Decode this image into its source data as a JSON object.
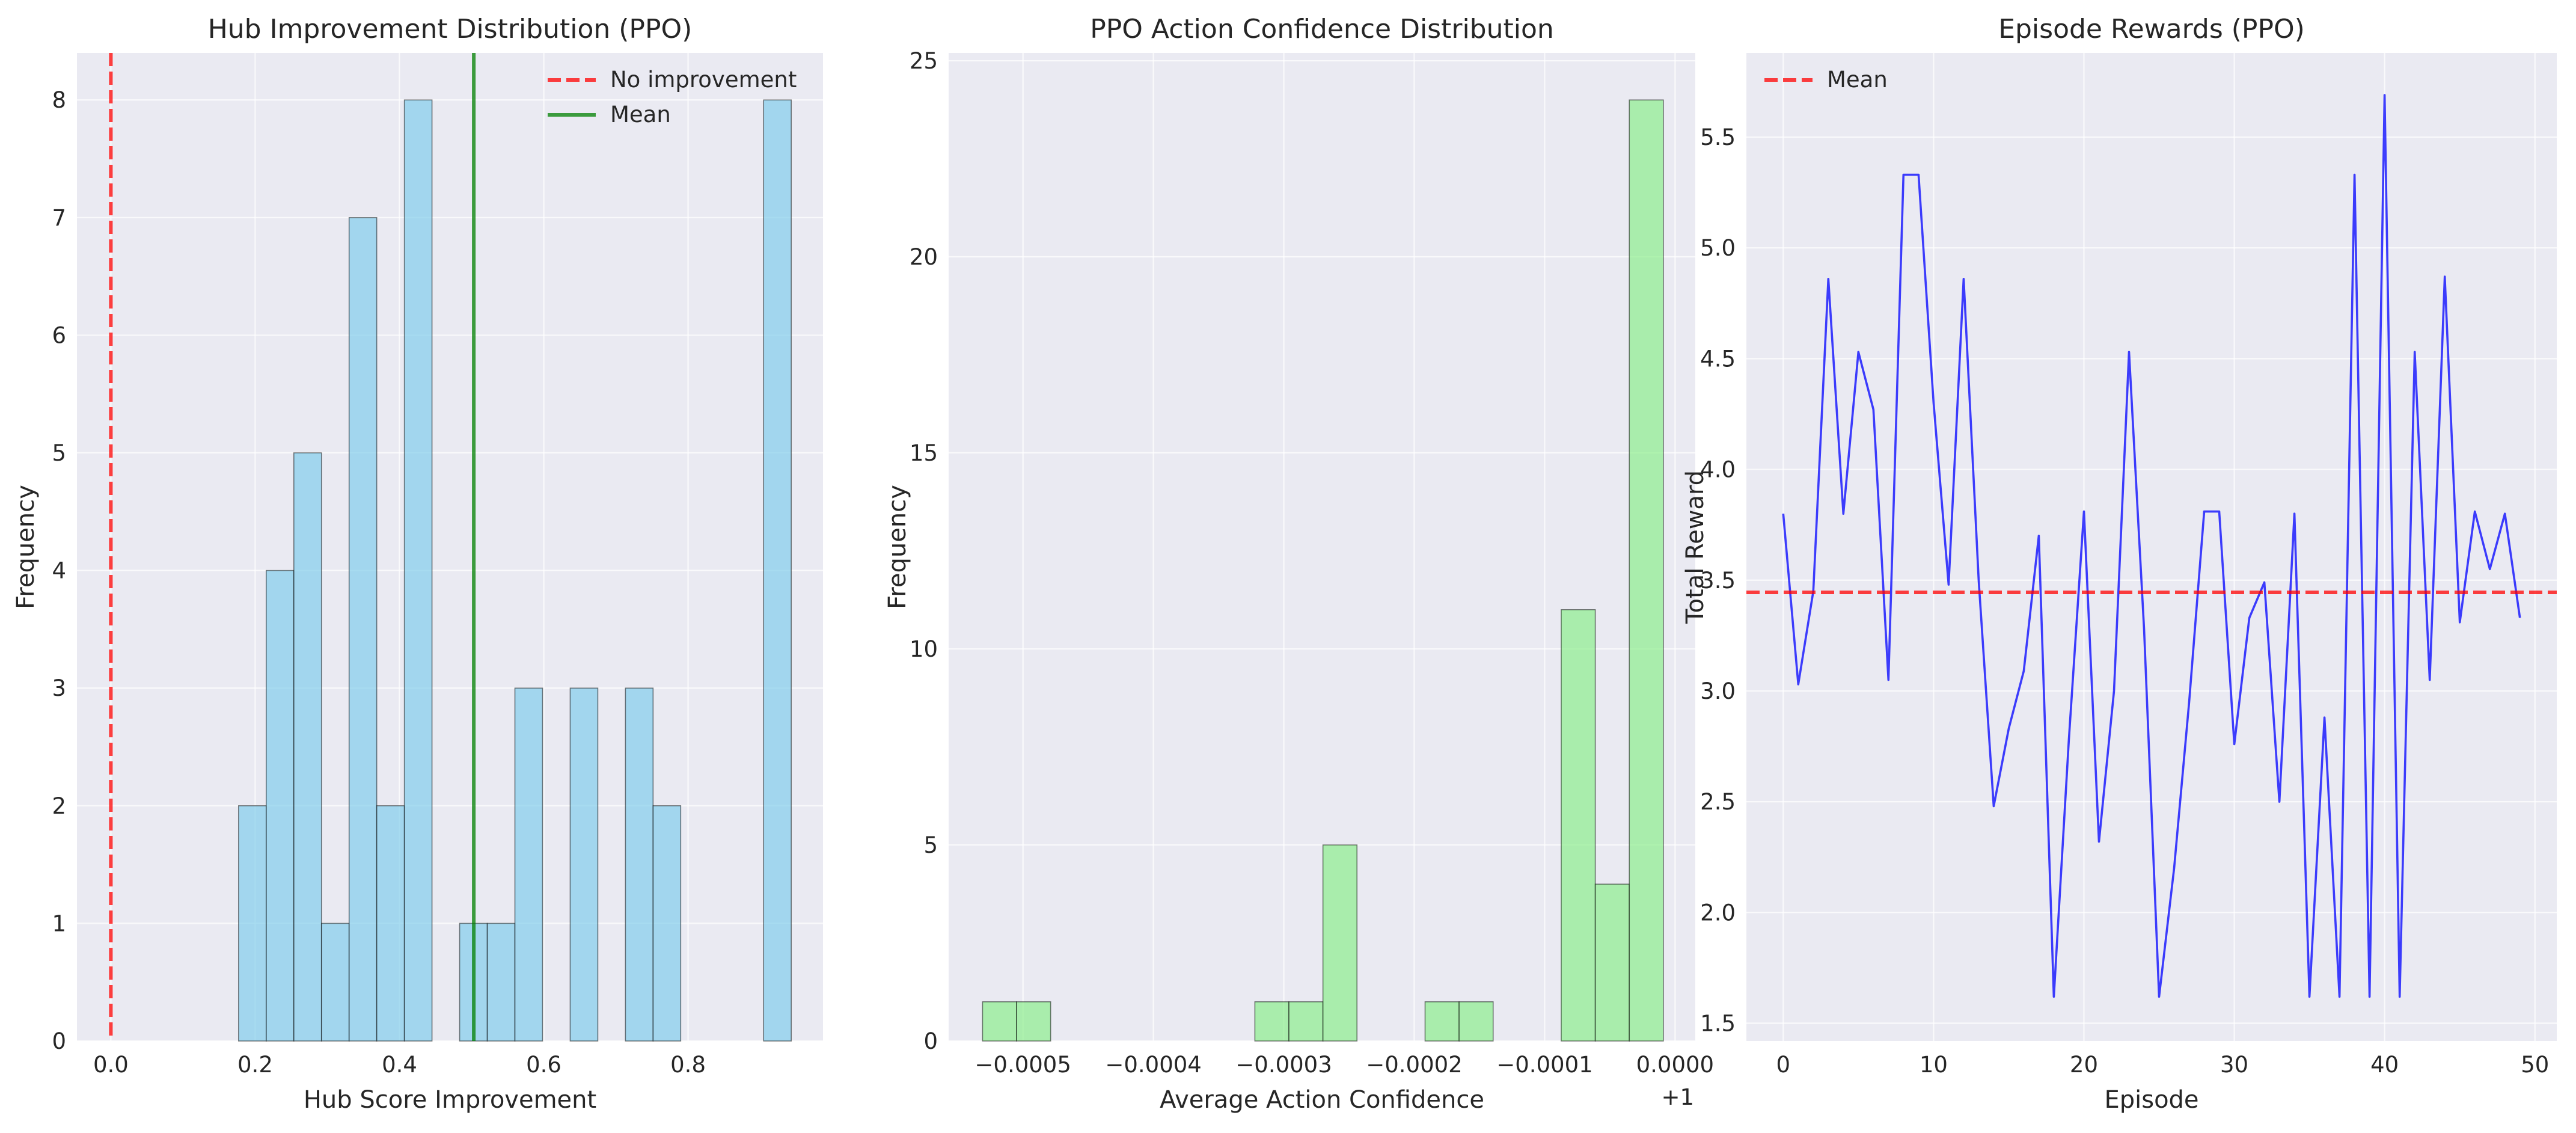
{
  "chart_data": [
    {
      "type": "bar",
      "subtype": "histogram",
      "title": "Hub Improvement Distribution (PPO)",
      "xlabel": "Hub Score Improvement",
      "ylabel": "Frequency",
      "xlim": [
        -0.047,
        0.987
      ],
      "ylim": [
        0,
        8.4
      ],
      "xticks": [
        0.0,
        0.2,
        0.4,
        0.6,
        0.8
      ],
      "xtick_labels": [
        "0.0",
        "0.2",
        "0.4",
        "0.6",
        "0.8"
      ],
      "yticks": [
        0,
        1,
        2,
        3,
        4,
        5,
        6,
        7,
        8
      ],
      "ytick_labels": [
        "0",
        "1",
        "2",
        "3",
        "4",
        "5",
        "6",
        "7",
        "8"
      ],
      "bin_start": 0.177,
      "bin_width": 0.0383,
      "counts": [
        2,
        4,
        5,
        1,
        7,
        2,
        8,
        0,
        1,
        1,
        3,
        0,
        3,
        0,
        3,
        2,
        0,
        0,
        0,
        8
      ],
      "bar_color": "#87CEEB",
      "reference_lines": [
        {
          "name": "No improvement",
          "orientation": "vertical",
          "x": 0.0,
          "color": "#FF0000",
          "style": "dashed"
        },
        {
          "name": "Mean",
          "orientation": "vertical",
          "x": 0.503,
          "color": "#008000",
          "style": "solid"
        }
      ],
      "legend": {
        "position": "upper right",
        "entries": [
          "No improvement",
          "Mean"
        ]
      },
      "grid": true
    },
    {
      "type": "bar",
      "subtype": "histogram",
      "title": "PPO Action Confidence Distribution",
      "xlabel": "Average Action Confidence",
      "ylabel": "Frequency",
      "offset_text": "+1",
      "xlim": [
        -0.000557,
        1.55e-05
      ],
      "ylim": [
        0,
        25.2
      ],
      "xticks": [
        -0.0005,
        -0.0004,
        -0.0003,
        -0.0002,
        -0.0001,
        0.0
      ],
      "xtick_labels": [
        "−0.0005",
        "−0.0004",
        "−0.0003",
        "−0.0002",
        "−0.0001",
        "0.0000"
      ],
      "yticks": [
        0,
        5,
        10,
        15,
        20,
        25
      ],
      "ytick_labels": [
        "0",
        "5",
        "10",
        "15",
        "20",
        "25"
      ],
      "bin_start": -0.000531,
      "bin_width": 2.61e-05,
      "counts": [
        1,
        1,
        0,
        0,
        0,
        0,
        0,
        0,
        1,
        1,
        5,
        0,
        0,
        1,
        1,
        0,
        0,
        11,
        4,
        24
      ],
      "bar_color": "#90EE90",
      "grid": true
    },
    {
      "type": "line",
      "title": "Episode Rewards (PPO)",
      "xlabel": "Episode",
      "ylabel": "Total Reward",
      "xlim": [
        -2.45,
        51.45
      ],
      "ylim": [
        1.42,
        5.88
      ],
      "xticks": [
        0,
        10,
        20,
        30,
        40,
        50
      ],
      "xtick_labels": [
        "0",
        "10",
        "20",
        "30",
        "40",
        "50"
      ],
      "yticks": [
        1.5,
        2.0,
        2.5,
        3.0,
        3.5,
        4.0,
        4.5,
        5.0,
        5.5
      ],
      "ytick_labels": [
        "1.5",
        "2.0",
        "2.5",
        "3.0",
        "3.5",
        "4.0",
        "4.5",
        "5.0",
        "5.5"
      ],
      "series": [
        {
          "color": "#0000FF",
          "x": [
            0,
            1,
            2,
            3,
            4,
            5,
            6,
            7,
            8,
            9,
            10,
            11,
            12,
            13,
            14,
            15,
            16,
            17,
            18,
            19,
            20,
            21,
            22,
            23,
            24,
            25,
            26,
            27,
            28,
            29,
            30,
            31,
            32,
            33,
            34,
            35,
            36,
            37,
            38,
            39,
            40,
            41,
            42,
            43,
            44,
            45,
            46,
            47,
            48,
            49
          ],
          "values": [
            3.8,
            3.03,
            3.45,
            4.86,
            3.8,
            4.53,
            4.27,
            3.05,
            5.33,
            5.33,
            4.3,
            3.48,
            4.86,
            3.5,
            2.48,
            2.83,
            3.09,
            3.7,
            1.62,
            2.78,
            3.81,
            2.32,
            3.0,
            4.53,
            3.28,
            1.62,
            2.2,
            2.95,
            3.81,
            3.81,
            2.76,
            3.33,
            3.49,
            2.5,
            3.8,
            1.62,
            2.88,
            1.62,
            5.33,
            1.62,
            5.69,
            1.62,
            4.53,
            3.05,
            4.87,
            3.31,
            3.81,
            3.55,
            3.8,
            3.33
          ]
        }
      ],
      "reference_lines": [
        {
          "name": "Mean",
          "orientation": "horizontal",
          "y": 3.445,
          "color": "#FF0000",
          "style": "dashed"
        }
      ],
      "legend": {
        "position": "upper left",
        "entries": [
          "Mean"
        ]
      },
      "grid": true
    }
  ]
}
